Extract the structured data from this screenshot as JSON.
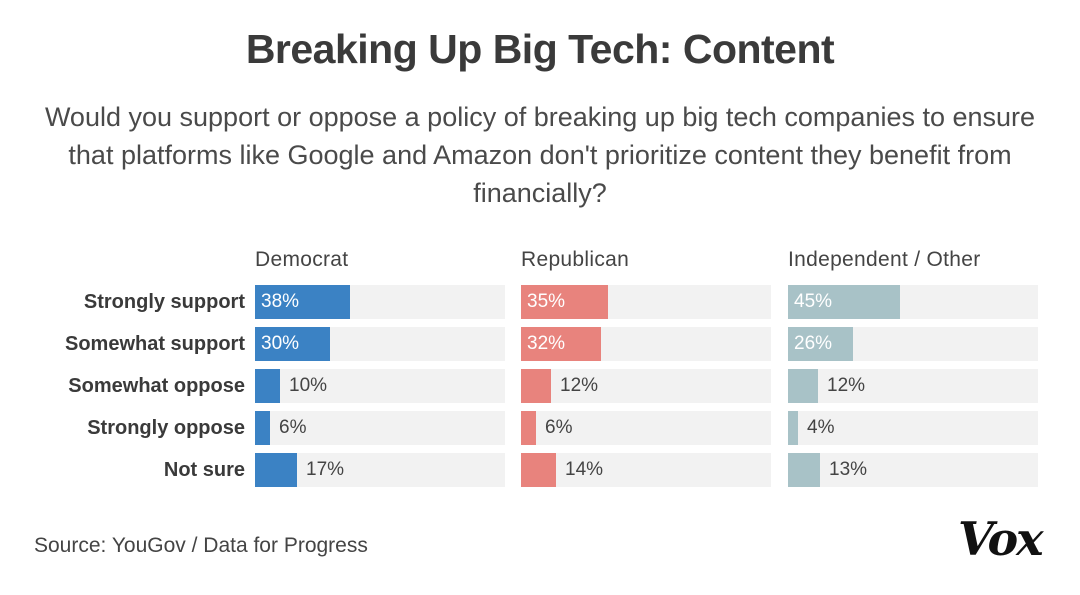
{
  "chart_data": {
    "type": "bar",
    "orientation": "horizontal",
    "title": "Breaking Up Big Tech: Content",
    "subtitle": "Would you support or oppose a policy of breaking up big tech companies to ensure that platforms like Google and Amazon don't prioritize content they benefit from financially?",
    "categories": [
      "Strongly support",
      "Somewhat support",
      "Somewhat oppose",
      "Strongly oppose",
      "Not sure"
    ],
    "series": [
      {
        "name": "Democrat",
        "color": "#3b82c4",
        "values": [
          38,
          30,
          10,
          6,
          17
        ],
        "labels": [
          "38%",
          "30%",
          "10%",
          "6%",
          "17%"
        ]
      },
      {
        "name": "Republican",
        "color": "#e8837d",
        "values": [
          35,
          32,
          12,
          6,
          14
        ],
        "labels": [
          "35%",
          "32%",
          "12%",
          "6%",
          "14%"
        ]
      },
      {
        "name": "Independent / Other",
        "color": "#a8c2c7",
        "values": [
          45,
          26,
          12,
          4,
          13
        ],
        "labels": [
          "45%",
          "26%",
          "12%",
          "4%",
          "13%"
        ]
      }
    ],
    "xlim": [
      0,
      100
    ],
    "source": "Source: YouGov / Data for Progress"
  },
  "logo": {
    "text": "Vox"
  },
  "colors": {
    "track": "#f2f2f2"
  }
}
